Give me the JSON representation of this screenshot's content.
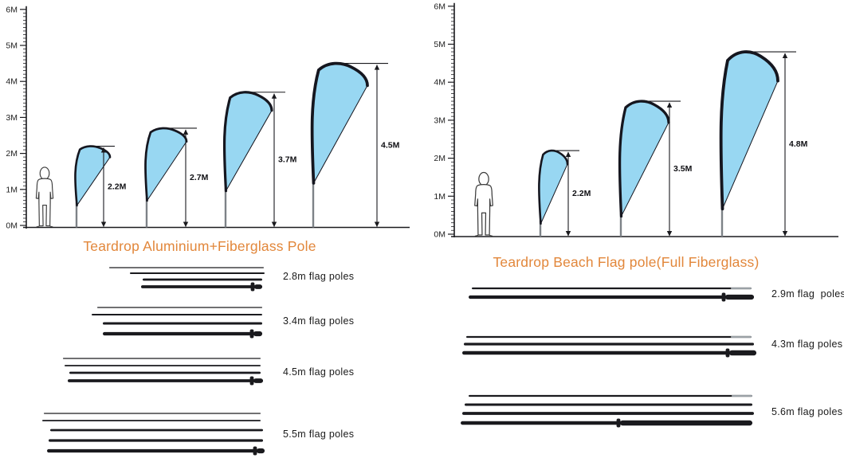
{
  "colors": {
    "accent_title": "#E2873B",
    "flag_fill": "#98D7F2",
    "flag_edge": "#15161F",
    "ink": "#1A1A1E",
    "pole_gray": "#9AA0A5"
  },
  "sections": [
    {
      "name": "aluminium-fiberglass",
      "title": "Teardrop Aluminium+Fiberglass Pole",
      "ruler_labels": [
        "6M",
        "5M",
        "4M",
        "3M",
        "2M",
        "1M",
        "0M"
      ],
      "flags": [
        {
          "label": "2.2M",
          "height_m": 2.2
        },
        {
          "label": "2.7M",
          "height_m": 2.7
        },
        {
          "label": "3.7M",
          "height_m": 3.7
        },
        {
          "label": "4.5M",
          "height_m": 4.5
        }
      ],
      "pole_sets": [
        {
          "label": "2.8m flag poles",
          "pole_count": 4
        },
        {
          "label": "3.4m flag poles",
          "pole_count": 4
        },
        {
          "label": "4.5m flag poles",
          "pole_count": 4
        },
        {
          "label": "5.5m flag poles",
          "pole_count": 5
        }
      ]
    },
    {
      "name": "full-fiberglass",
      "title": "Teardrop Beach Flag pole(Full Fiberglass)",
      "ruler_labels": [
        "6M",
        "5M",
        "4M",
        "3M",
        "2M",
        "1M",
        "0M"
      ],
      "flags": [
        {
          "label": "2.2M",
          "height_m": 2.2
        },
        {
          "label": "3.5M",
          "height_m": 3.5
        },
        {
          "label": "4.8M",
          "height_m": 4.8
        }
      ],
      "pole_sets": [
        {
          "label": "2.9m flag  poles",
          "pole_count": 2
        },
        {
          "label": "4.3m flag poles",
          "pole_count": 3
        },
        {
          "label": "5.6m flag poles",
          "pole_count": 4
        }
      ]
    }
  ]
}
